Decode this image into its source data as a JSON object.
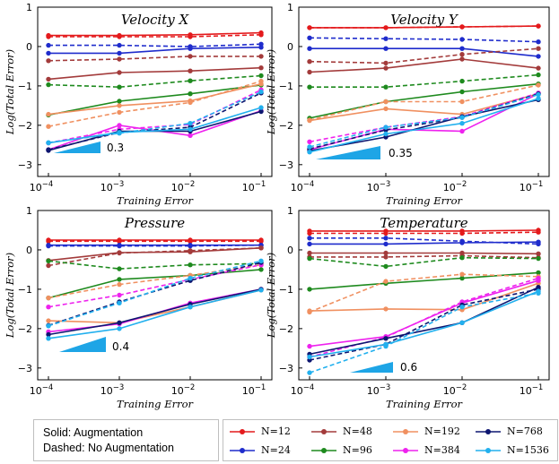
{
  "legend": {
    "note_lines": [
      "Solid: Augmentation",
      "Dashed: No Augmentation"
    ],
    "series": [
      {
        "name": "N=12",
        "color": "#e41a1c"
      },
      {
        "name": "N=24",
        "color": "#1f2ccc"
      },
      {
        "name": "N=48",
        "color": "#a33b3b"
      },
      {
        "name": "N=96",
        "color": "#1e8a1e"
      },
      {
        "name": "N=192",
        "color": "#f09060"
      },
      {
        "name": "N=384",
        "color": "#ee22ee"
      },
      {
        "name": "N=768",
        "color": "#0d1670"
      },
      {
        "name": "N=1536",
        "color": "#22b0ee"
      }
    ]
  },
  "chart_data": [
    {
      "type": "line",
      "title": "Velocity X",
      "xlabel": "Training Error",
      "ylabel": "Log(Total Error)",
      "x_scale": "log",
      "x": [
        0.0001,
        0.001,
        0.01,
        0.1
      ],
      "x_tick_labels": [
        "10^-4",
        "10^-3",
        "10^-2",
        "10^-1"
      ],
      "ylim": [
        -3.3,
        1
      ],
      "y_ticks": [
        -3,
        -2,
        -1,
        0,
        1
      ],
      "slope_label": "0.3",
      "series": [
        {
          "name": "N=12",
          "style": "solid",
          "values": [
            0.28,
            0.28,
            0.3,
            0.35
          ]
        },
        {
          "name": "N=12",
          "style": "dashed",
          "values": [
            0.25,
            0.25,
            0.25,
            0.3
          ]
        },
        {
          "name": "N=24",
          "style": "solid",
          "values": [
            -0.17,
            -0.17,
            -0.05,
            -0.02
          ]
        },
        {
          "name": "N=24",
          "style": "dashed",
          "values": [
            0.03,
            0.03,
            0.0,
            0.06
          ]
        },
        {
          "name": "N=48",
          "style": "solid",
          "values": [
            -0.83,
            -0.66,
            -0.62,
            -0.54
          ]
        },
        {
          "name": "N=48",
          "style": "dashed",
          "values": [
            -0.36,
            -0.32,
            -0.25,
            -0.25
          ]
        },
        {
          "name": "N=96",
          "style": "solid",
          "values": [
            -1.74,
            -1.39,
            -1.2,
            -0.98
          ]
        },
        {
          "name": "N=96",
          "style": "dashed",
          "values": [
            -0.97,
            -1.03,
            -0.87,
            -0.74
          ]
        },
        {
          "name": "N=192",
          "style": "solid",
          "values": [
            -1.72,
            -1.5,
            -1.38,
            -0.95
          ]
        },
        {
          "name": "N=192",
          "style": "dashed",
          "values": [
            -2.03,
            -1.67,
            -1.42,
            -0.88
          ]
        },
        {
          "name": "N=384",
          "style": "solid",
          "values": [
            -2.62,
            -2.0,
            -2.26,
            -1.63
          ]
        },
        {
          "name": "N=384",
          "style": "dashed",
          "values": [
            -2.45,
            -2.1,
            -1.98,
            -1.1
          ]
        },
        {
          "name": "N=768",
          "style": "solid",
          "values": [
            -2.64,
            -2.15,
            -2.15,
            -1.65
          ]
        },
        {
          "name": "N=768",
          "style": "dashed",
          "values": [
            -2.62,
            -2.18,
            -2.05,
            -1.18
          ]
        },
        {
          "name": "N=1536",
          "style": "solid",
          "values": [
            -2.45,
            -2.18,
            -2.1,
            -1.55
          ]
        },
        {
          "name": "N=1536",
          "style": "dashed",
          "values": [
            -2.44,
            -2.2,
            -1.95,
            -1.15
          ]
        }
      ]
    },
    {
      "type": "line",
      "title": "Velocity Y",
      "xlabel": "Training Error",
      "ylabel": "Log(Total Error)",
      "x_scale": "log",
      "x": [
        0.0001,
        0.001,
        0.01,
        0.1
      ],
      "x_tick_labels": [
        "10^-4",
        "10^-3",
        "10^-2",
        "10^-1"
      ],
      "ylim": [
        -3.3,
        1
      ],
      "y_ticks": [
        -3,
        -2,
        -1,
        0,
        1
      ],
      "slope_label": "0.35",
      "series": [
        {
          "name": "N=12",
          "style": "solid",
          "values": [
            0.48,
            0.48,
            0.5,
            0.52
          ]
        },
        {
          "name": "N=12",
          "style": "dashed",
          "values": [
            0.48,
            0.48,
            0.5,
            0.52
          ]
        },
        {
          "name": "N=24",
          "style": "solid",
          "values": [
            -0.05,
            -0.05,
            -0.05,
            -0.25
          ]
        },
        {
          "name": "N=24",
          "style": "dashed",
          "values": [
            0.22,
            0.2,
            0.18,
            0.12
          ]
        },
        {
          "name": "N=48",
          "style": "solid",
          "values": [
            -0.65,
            -0.55,
            -0.32,
            -0.55
          ]
        },
        {
          "name": "N=48",
          "style": "dashed",
          "values": [
            -0.38,
            -0.42,
            -0.2,
            -0.05
          ]
        },
        {
          "name": "N=96",
          "style": "solid",
          "values": [
            -1.82,
            -1.4,
            -1.15,
            -0.95
          ]
        },
        {
          "name": "N=96",
          "style": "dashed",
          "values": [
            -1.03,
            -1.03,
            -0.88,
            -0.72
          ]
        },
        {
          "name": "N=192",
          "style": "solid",
          "values": [
            -1.88,
            -1.58,
            -1.72,
            -1.2
          ]
        },
        {
          "name": "N=192",
          "style": "dashed",
          "values": [
            -1.87,
            -1.4,
            -1.4,
            -0.98
          ]
        },
        {
          "name": "N=384",
          "style": "solid",
          "values": [
            -2.62,
            -2.1,
            -2.15,
            -1.2
          ]
        },
        {
          "name": "N=384",
          "style": "dashed",
          "values": [
            -2.42,
            -2.05,
            -1.78,
            -1.18
          ]
        },
        {
          "name": "N=768",
          "style": "solid",
          "values": [
            -2.65,
            -2.3,
            -1.78,
            -1.35
          ]
        },
        {
          "name": "N=768",
          "style": "dashed",
          "values": [
            -2.6,
            -2.12,
            -1.8,
            -1.2
          ]
        },
        {
          "name": "N=1536",
          "style": "solid",
          "values": [
            -2.68,
            -2.22,
            -1.95,
            -1.32
          ]
        },
        {
          "name": "N=1536",
          "style": "dashed",
          "values": [
            -2.55,
            -2.05,
            -1.8,
            -1.22
          ]
        }
      ]
    },
    {
      "type": "line",
      "title": "Pressure",
      "xlabel": "Training Error",
      "ylabel": "Log(Total Error)",
      "x_scale": "log",
      "x": [
        0.0001,
        0.001,
        0.01,
        0.1
      ],
      "x_tick_labels": [
        "10^-4",
        "10^-3",
        "10^-2",
        "10^-1"
      ],
      "ylim": [
        -3.3,
        1
      ],
      "y_ticks": [
        -3,
        -2,
        -1,
        0,
        1
      ],
      "slope_label": "0.4",
      "series": [
        {
          "name": "N=12",
          "style": "solid",
          "values": [
            0.25,
            0.25,
            0.25,
            0.25
          ]
        },
        {
          "name": "N=12",
          "style": "dashed",
          "values": [
            0.22,
            0.22,
            0.22,
            0.22
          ]
        },
        {
          "name": "N=24",
          "style": "solid",
          "values": [
            0.12,
            0.12,
            0.12,
            0.12
          ]
        },
        {
          "name": "N=24",
          "style": "dashed",
          "values": [
            0.1,
            0.1,
            0.1,
            0.12
          ]
        },
        {
          "name": "N=48",
          "style": "solid",
          "values": [
            -0.27,
            -0.07,
            -0.05,
            0.05
          ]
        },
        {
          "name": "N=48",
          "style": "dashed",
          "values": [
            -0.4,
            -0.08,
            -0.02,
            0.05
          ]
        },
        {
          "name": "N=96",
          "style": "solid",
          "values": [
            -1.22,
            -0.75,
            -0.65,
            -0.5
          ]
        },
        {
          "name": "N=96",
          "style": "dashed",
          "values": [
            -0.28,
            -0.48,
            -0.38,
            -0.35
          ]
        },
        {
          "name": "N=192",
          "style": "solid",
          "values": [
            -1.8,
            -1.85,
            -1.45,
            -1.02
          ]
        },
        {
          "name": "N=192",
          "style": "dashed",
          "values": [
            -1.22,
            -0.88,
            -0.65,
            -0.38
          ]
        },
        {
          "name": "N=384",
          "style": "solid",
          "values": [
            -2.08,
            -1.88,
            -1.35,
            -1.0
          ]
        },
        {
          "name": "N=384",
          "style": "dashed",
          "values": [
            -1.45,
            -1.15,
            -0.75,
            -0.38
          ]
        },
        {
          "name": "N=768",
          "style": "solid",
          "values": [
            -2.15,
            -1.85,
            -1.38,
            -1.0
          ]
        },
        {
          "name": "N=768",
          "style": "dashed",
          "values": [
            -1.92,
            -1.32,
            -0.78,
            -0.32
          ]
        },
        {
          "name": "N=1536",
          "style": "solid",
          "values": [
            -2.25,
            -2.0,
            -1.45,
            -1.02
          ]
        },
        {
          "name": "N=1536",
          "style": "dashed",
          "values": [
            -1.93,
            -1.35,
            -0.72,
            -0.28
          ]
        }
      ]
    },
    {
      "type": "line",
      "title": "Temperature",
      "xlabel": "Training Error",
      "ylabel": "Log(Total Error)",
      "x_scale": "log",
      "x": [
        0.0001,
        0.001,
        0.01,
        0.1
      ],
      "x_tick_labels": [
        "10^-4",
        "10^-3",
        "10^-2",
        "10^-1"
      ],
      "ylim": [
        -3.3,
        1
      ],
      "y_ticks": [
        -3,
        -2,
        -1,
        0,
        1
      ],
      "slope_label": "0.6",
      "series": [
        {
          "name": "N=12",
          "style": "solid",
          "values": [
            0.48,
            0.48,
            0.48,
            0.5
          ]
        },
        {
          "name": "N=12",
          "style": "dashed",
          "values": [
            0.42,
            0.42,
            0.42,
            0.45
          ]
        },
        {
          "name": "N=24",
          "style": "solid",
          "values": [
            0.15,
            0.15,
            0.18,
            0.2
          ]
        },
        {
          "name": "N=24",
          "style": "dashed",
          "values": [
            0.3,
            0.3,
            0.22,
            0.15
          ]
        },
        {
          "name": "N=48",
          "style": "solid",
          "values": [
            -0.08,
            -0.08,
            -0.08,
            -0.1
          ]
        },
        {
          "name": "N=48",
          "style": "dashed",
          "values": [
            -0.18,
            -0.18,
            -0.15,
            -0.2
          ]
        },
        {
          "name": "N=96",
          "style": "solid",
          "values": [
            -1.0,
            -0.85,
            -0.72,
            -0.58
          ]
        },
        {
          "name": "N=96",
          "style": "dashed",
          "values": [
            -0.22,
            -0.42,
            -0.2,
            -0.22
          ]
        },
        {
          "name": "N=192",
          "style": "solid",
          "values": [
            -1.55,
            -1.5,
            -1.52,
            -0.85
          ]
        },
        {
          "name": "N=192",
          "style": "dashed",
          "values": [
            -1.58,
            -0.8,
            -0.62,
            -0.68
          ]
        },
        {
          "name": "N=384",
          "style": "solid",
          "values": [
            -2.45,
            -2.2,
            -1.35,
            -0.78
          ]
        },
        {
          "name": "N=384",
          "style": "dashed",
          "values": [
            -2.72,
            -2.22,
            -1.32,
            -0.72
          ]
        },
        {
          "name": "N=768",
          "style": "solid",
          "values": [
            -2.65,
            -2.25,
            -1.85,
            -0.95
          ]
        },
        {
          "name": "N=768",
          "style": "dashed",
          "values": [
            -2.8,
            -2.4,
            -1.4,
            -1.0
          ]
        },
        {
          "name": "N=1536",
          "style": "solid",
          "values": [
            -2.72,
            -2.4,
            -1.85,
            -1.05
          ]
        },
        {
          "name": "N=1536",
          "style": "dashed",
          "values": [
            -3.12,
            -2.45,
            -1.45,
            -1.1
          ]
        }
      ]
    }
  ]
}
